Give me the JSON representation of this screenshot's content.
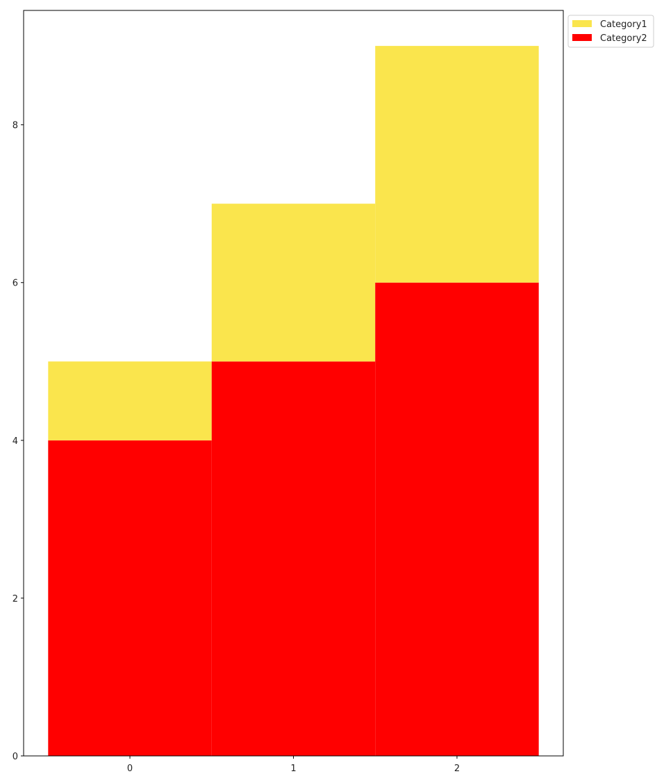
{
  "chart_data": {
    "type": "bar",
    "stacked": true,
    "categories": [
      "0",
      "1",
      "2"
    ],
    "series": [
      {
        "name": "Category2",
        "values": [
          4,
          5,
          6
        ],
        "color": "#ff0000"
      },
      {
        "name": "Category1",
        "values": [
          1,
          2,
          3
        ],
        "color": "#fae54d"
      }
    ],
    "title": "",
    "xlabel": "",
    "ylabel": "",
    "ylim": [
      0,
      9.45
    ],
    "yticks": [
      0,
      2,
      4,
      6,
      8
    ],
    "grid": false,
    "legend": {
      "placement": "outside-top-right",
      "entries": [
        {
          "label": "Category1",
          "color": "#fae54d"
        },
        {
          "label": "Category2",
          "color": "#ff0000"
        }
      ]
    }
  }
}
